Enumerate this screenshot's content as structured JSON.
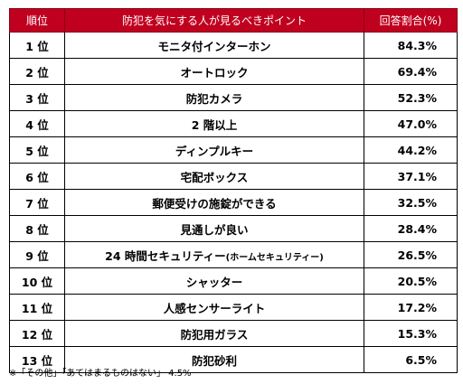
{
  "chart_data": {
    "type": "table",
    "columns": [
      "順位",
      "防犯を気にする人が見るべきポイント",
      "回答割合(%)"
    ],
    "rows": [
      {
        "rank": "1 位",
        "item": "モニタ付インターホン",
        "item_sub": "",
        "value": 84.3,
        "value_label": "84.3%"
      },
      {
        "rank": "2 位",
        "item": "オートロック",
        "item_sub": "",
        "value": 69.4,
        "value_label": "69.4%"
      },
      {
        "rank": "3 位",
        "item": "防犯カメラ",
        "item_sub": "",
        "value": 52.3,
        "value_label": "52.3%"
      },
      {
        "rank": "4 位",
        "item": "2 階以上",
        "item_sub": "",
        "value": 47.0,
        "value_label": "47.0%"
      },
      {
        "rank": "5 位",
        "item": "ディンプルキー",
        "item_sub": "",
        "value": 44.2,
        "value_label": "44.2%"
      },
      {
        "rank": "6 位",
        "item": "宅配ボックス",
        "item_sub": "",
        "value": 37.1,
        "value_label": "37.1%"
      },
      {
        "rank": "7 位",
        "item": "郵便受けの施錠ができる",
        "item_sub": "",
        "value": 32.5,
        "value_label": "32.5%"
      },
      {
        "rank": "8 位",
        "item": "見通しが良い",
        "item_sub": "",
        "value": 28.4,
        "value_label": "28.4%"
      },
      {
        "rank": "9 位",
        "item": "24 時間セキュリティー",
        "item_sub": "(ホームセキュリティー)",
        "value": 26.5,
        "value_label": "26.5%"
      },
      {
        "rank": "10 位",
        "item": "シャッター",
        "item_sub": "",
        "value": 20.5,
        "value_label": "20.5%"
      },
      {
        "rank": "11 位",
        "item": "人感センサーライト",
        "item_sub": "",
        "value": 17.2,
        "value_label": "17.2%"
      },
      {
        "rank": "12 位",
        "item": "防犯用ガラス",
        "item_sub": "",
        "value": 15.3,
        "value_label": "15.3%"
      },
      {
        "rank": "13 位",
        "item": "防犯砂利",
        "item_sub": "",
        "value": 6.5,
        "value_label": "6.5%"
      }
    ],
    "note": "※「その他」「あてはまるものはない」 4.5%",
    "header_color": "#c0001f"
  }
}
